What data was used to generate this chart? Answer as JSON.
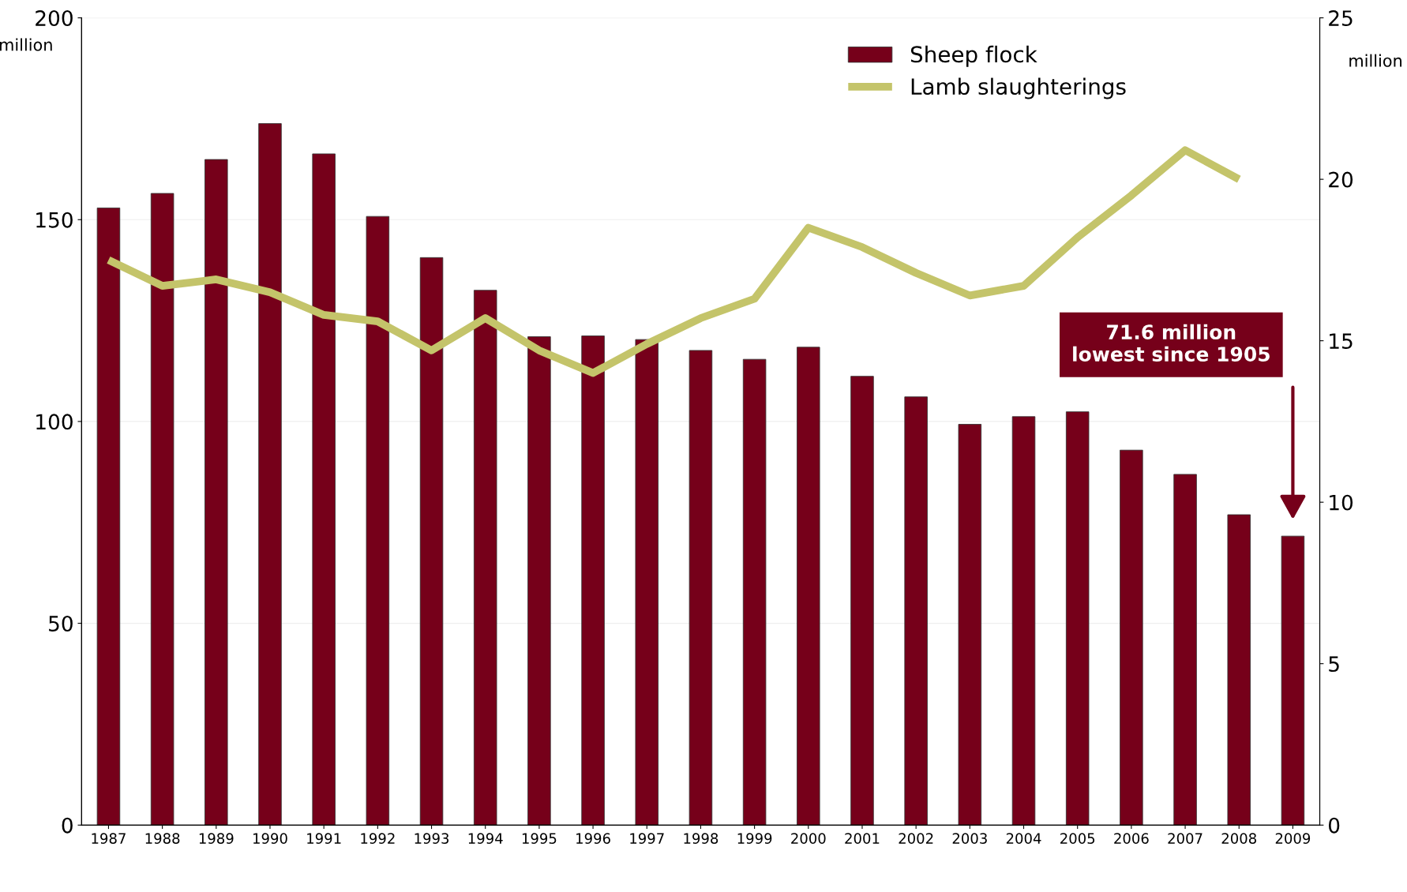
{
  "chart_data": {
    "type": "bar",
    "categories": [
      "1987",
      "1988",
      "1989",
      "1990",
      "1991",
      "1992",
      "1993",
      "1994",
      "1995",
      "1996",
      "1997",
      "1998",
      "1999",
      "2000",
      "2001",
      "2002",
      "2003",
      "2004",
      "2005",
      "2006",
      "2007",
      "2008",
      "2009"
    ],
    "series": [
      {
        "name": "Sheep flock",
        "color": "#76001a",
        "values": [
          152.9,
          156.5,
          164.9,
          173.8,
          166.3,
          150.8,
          140.6,
          132.5,
          121.0,
          121.2,
          120.3,
          117.6,
          115.4,
          118.4,
          111.2,
          106.1,
          99.3,
          101.2,
          102.4,
          92.9,
          86.9,
          76.9,
          71.6
        ]
      },
      {
        "name": "Lamb slaughterings",
        "type": "line",
        "axis": "y2",
        "color": "#c4c46a",
        "values": [
          17.5,
          16.7,
          16.9,
          16.5,
          15.8,
          15.6,
          14.7,
          15.7,
          14.7,
          14.0,
          14.9,
          15.7,
          16.3,
          18.5,
          17.9,
          17.1,
          16.4,
          16.7,
          18.2,
          19.5,
          20.9,
          20.0,
          null
        ]
      }
    ],
    "ylabel": "million",
    "y2label": "million",
    "ylim": [
      0,
      200
    ],
    "yticks": [
      0,
      50,
      100,
      150,
      200
    ],
    "y2lim": [
      0,
      25
    ],
    "y2ticks": [
      0,
      5,
      10,
      15,
      20,
      25
    ],
    "grid": "y",
    "legend": "top right",
    "marker": "none",
    "line_style": "solid",
    "annotations": [
      "71.6 million\nlowest since 1905"
    ]
  }
}
